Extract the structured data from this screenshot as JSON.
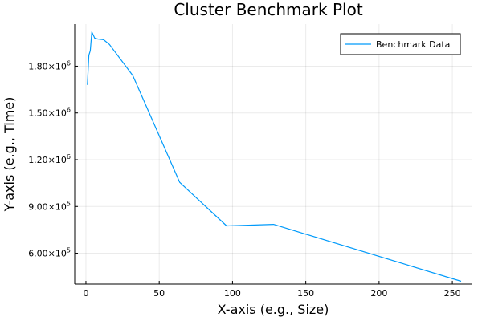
{
  "chart_data": {
    "type": "line",
    "title": "Cluster Benchmark Plot",
    "xlabel": "X-axis (e.g., Size)",
    "ylabel": "Y-axis (e.g., Time)",
    "xlim": [
      -7.65,
      263.65
    ],
    "ylim": [
      402000,
      2070000
    ],
    "x_ticks": [
      0,
      50,
      100,
      150,
      200,
      250
    ],
    "x_tick_labels": [
      "0",
      "50",
      "100",
      "150",
      "200",
      "250"
    ],
    "y_ticks": [
      600000,
      900000,
      1200000,
      1500000,
      1800000
    ],
    "y_tick_labels": [
      {
        "mantissa": "6.00",
        "base": "×10",
        "exp": "5"
      },
      {
        "mantissa": "9.00",
        "base": "×10",
        "exp": "5"
      },
      {
        "mantissa": "1.20",
        "base": "×10",
        "exp": "6"
      },
      {
        "mantissa": "1.50",
        "base": "×10",
        "exp": "6"
      },
      {
        "mantissa": "1.80",
        "base": "×10",
        "exp": "6"
      }
    ],
    "grid": true,
    "legend_position": "top-right",
    "series": [
      {
        "name": "Benchmark Data",
        "color": "#009AFA",
        "x": [
          1,
          2,
          3,
          4,
          5,
          6,
          8,
          12,
          16,
          32,
          64,
          96,
          128,
          256
        ],
        "y": [
          1680000,
          1870000,
          1900000,
          2020000,
          2000000,
          1980000,
          1975000,
          1970000,
          1940000,
          1740000,
          1055000,
          775000,
          785000,
          420000
        ]
      }
    ]
  }
}
